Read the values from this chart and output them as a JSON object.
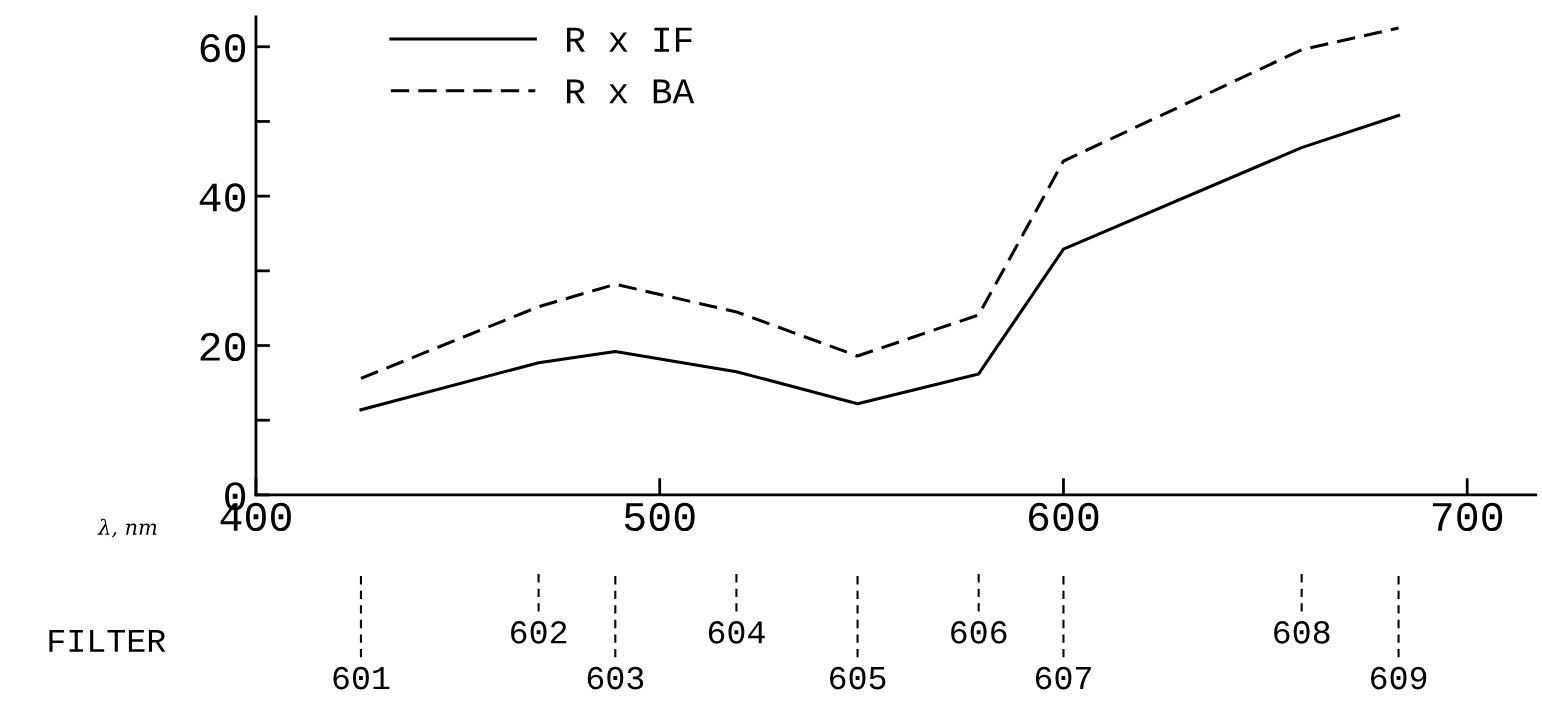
{
  "chart_data": {
    "type": "line",
    "xlabel": "λ, nm",
    "annotations": [
      "FILTER",
      {
        "text": "601",
        "x": 426
      },
      {
        "text": "602",
        "x": 470
      },
      {
        "text": "603",
        "x": 489
      },
      {
        "text": "604",
        "x": 519
      },
      {
        "text": "605",
        "x": 549
      },
      {
        "text": "606",
        "x": 579
      },
      {
        "text": "607",
        "x": 600
      },
      {
        "text": "608",
        "x": 659
      },
      {
        "text": "609",
        "x": 683
      }
    ],
    "x": [
      426,
      470,
      489,
      519,
      549,
      579,
      600,
      659,
      683
    ],
    "series": [
      {
        "name": "R x IF",
        "color": "#000000",
        "line_style": "solid",
        "values": [
          11.4,
          17.7,
          19.2,
          16.5,
          12.2,
          16.2,
          32.9,
          46.5,
          50.8
        ]
      },
      {
        "name": "R x BA",
        "color": "#000000",
        "line_style": "dashed",
        "values": [
          15.6,
          25.2,
          28.2,
          24.5,
          18.6,
          24.1,
          44.7,
          59.6,
          62.5
        ]
      }
    ],
    "xlim": [
      400,
      717
    ],
    "xticks": [
      400,
      500,
      600,
      700
    ],
    "ylim": [
      0,
      64
    ],
    "yticks": [
      0,
      {
        "value": 10,
        "label": null
      },
      20,
      {
        "value": 30,
        "label": null
      },
      40,
      {
        "value": 50,
        "label": null
      },
      60
    ],
    "legend": "top left",
    "grid": false,
    "marker": "none"
  }
}
